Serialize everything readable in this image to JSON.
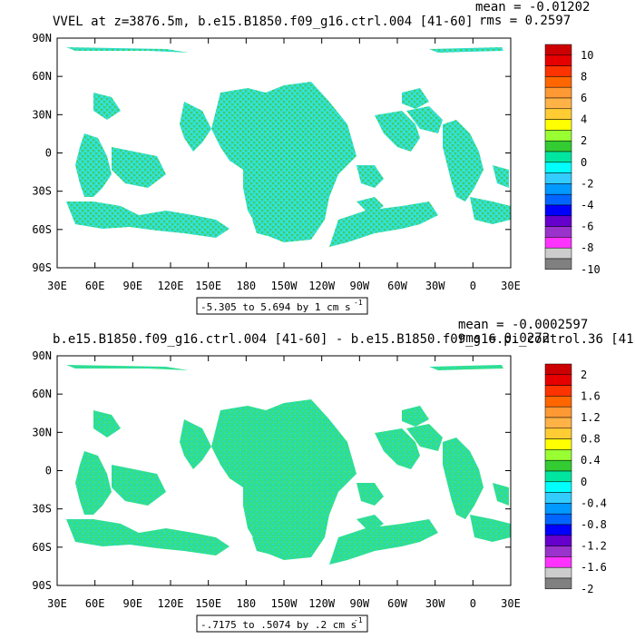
{
  "figures": [
    {
      "title": "VVEL at z=3876.5m, b.e15.B1850.f09_g16.ctrl.004 [41-60]",
      "mean_text": "mean = -0.01202",
      "rms_text": "rms = 0.2597",
      "range_text": "-5.305 to 5.694 by 1 cm s",
      "range_unit_sup": "-1",
      "colorbar_labels": [
        "10",
        "8",
        "6",
        "4",
        "2",
        "0",
        "-2",
        "-4",
        "-6",
        "-8",
        "-10"
      ]
    },
    {
      "title": "b.e15.B1850.f09_g16.ctrl.004 [41-60] - b.e15.B1850.f09_g16.pi_control.36 [41-",
      "mean_text": "mean = -0.0002597",
      "rms_text": "rms = 0.0272",
      "range_text": "-.7175 to .5074 by .2 cm s",
      "range_unit_sup": "-1",
      "colorbar_labels": [
        "2",
        "1.6",
        "1.2",
        "0.8",
        "0.4",
        "0",
        "-0.4",
        "-0.8",
        "-1.2",
        "-1.6",
        "-2"
      ]
    }
  ],
  "axes": {
    "lat_ticks": [
      "90N",
      "60N",
      "30N",
      "0",
      "30S",
      "60S",
      "90S"
    ],
    "lon_ticks": [
      "30E",
      "60E",
      "90E",
      "120E",
      "150E",
      "180",
      "150W",
      "120W",
      "90W",
      "60W",
      "30W",
      "0",
      "30E"
    ]
  },
  "colorbar_colors": [
    "#cc0000",
    "#e60000",
    "#ff3300",
    "#ff6600",
    "#ff9933",
    "#ffb347",
    "#ffcc33",
    "#ffff00",
    "#99ff33",
    "#33cc33",
    "#00e6a0",
    "#00ffff",
    "#33ccff",
    "#0099ff",
    "#0066ff",
    "#0000ff",
    "#6600cc",
    "#9933cc",
    "#ff33ff",
    "#cccccc",
    "#808080"
  ],
  "chart_data": [
    {
      "type": "heatmap",
      "title": "VVEL at z=3876.5m, b.e15.B1850.f09_g16.ctrl.004 [41-60]",
      "x_range": [
        "30E",
        "30E"
      ],
      "y_range": [
        "90S",
        "90N"
      ],
      "colorbar_range": [
        -10,
        10
      ],
      "data_min": -5.305,
      "data_max": 5.694,
      "interval": 1,
      "units": "cm s-1",
      "mean": -0.01202,
      "rms": 0.2597
    },
    {
      "type": "heatmap",
      "title": "b.e15.B1850.f09_g16.ctrl.004 [41-60] - b.e15.B1850.f09_g16.pi_control.36 [41-",
      "x_range": [
        "30E",
        "30E"
      ],
      "y_range": [
        "90S",
        "90N"
      ],
      "colorbar_range": [
        -2,
        2
      ],
      "data_min": -0.7175,
      "data_max": 0.5074,
      "interval": 0.2,
      "units": "cm s-1",
      "mean": -0.0002597,
      "rms": 0.0272
    }
  ]
}
